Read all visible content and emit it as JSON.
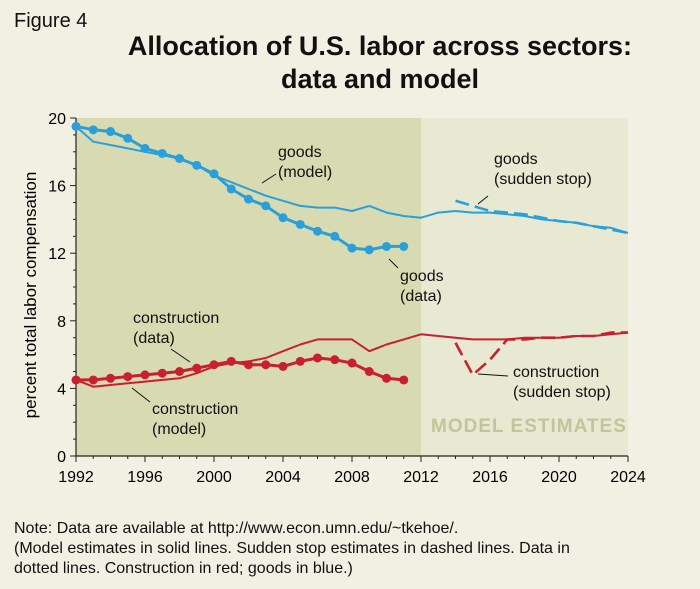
{
  "figure_label": "Figure 4",
  "title_line1": "Allocation of U.S. labor across sectors:",
  "title_line2": "data and model",
  "note": {
    "line1": "Note: Data are available at http://www.econ.umn.edu/~tkehoe/.",
    "line2": "(Model estimates in solid lines. Sudden stop estimates in dashed lines. Data in",
    "line3": "dotted lines. Construction in red; goods in blue.)"
  },
  "colors": {
    "goods": "#2b9fd9",
    "construction": "#c8202f",
    "data_region": "#d8dbb2",
    "estimate_region": "#e8e9d2",
    "estimates_text": "#c1c59a"
  },
  "chart_data": {
    "type": "line",
    "title": "Allocation of U.S. labor across sectors: data and model",
    "xlabel": "",
    "ylabel": "percent total labor compensation",
    "xlim": [
      1992,
      2024
    ],
    "ylim": [
      0,
      20
    ],
    "xticks": [
      1992,
      1996,
      2000,
      2004,
      2008,
      2012,
      2016,
      2020,
      2024
    ],
    "yticks": [
      0,
      4,
      8,
      12,
      16,
      20
    ],
    "regions": [
      {
        "name": "data",
        "from": 1992,
        "to": 2012
      },
      {
        "name": "model_estimates",
        "from": 2012,
        "to": 2024,
        "label": "MODEL ESTIMATES"
      }
    ],
    "series": [
      {
        "name": "goods (model)",
        "sector": "goods",
        "style": "solid",
        "label_lines": [
          "goods",
          "(model)"
        ],
        "x": [
          1992,
          1993,
          1994,
          1995,
          1996,
          1997,
          1998,
          1999,
          2000,
          2001,
          2002,
          2003,
          2004,
          2005,
          2006,
          2007,
          2008,
          2009,
          2010,
          2011,
          2012,
          2013,
          2014,
          2015,
          2016,
          2017,
          2018,
          2019,
          2020,
          2021,
          2022,
          2023,
          2024
        ],
        "y": [
          19.5,
          18.6,
          18.4,
          18.2,
          18.0,
          17.8,
          17.6,
          17.2,
          16.6,
          16.2,
          15.8,
          15.4,
          15.1,
          14.8,
          14.7,
          14.7,
          14.5,
          14.8,
          14.4,
          14.2,
          14.1,
          14.4,
          14.5,
          14.4,
          14.4,
          14.3,
          14.2,
          14.0,
          13.9,
          13.8,
          13.6,
          13.5,
          13.2
        ]
      },
      {
        "name": "goods (data)",
        "sector": "goods",
        "style": "dotted",
        "label_lines": [
          "goods",
          "(data)"
        ],
        "x": [
          1992,
          1993,
          1994,
          1995,
          1996,
          1997,
          1998,
          1999,
          2000,
          2001,
          2002,
          2003,
          2004,
          2005,
          2006,
          2007,
          2008,
          2009,
          2010,
          2011
        ],
        "y": [
          19.5,
          19.3,
          19.2,
          18.8,
          18.2,
          17.9,
          17.6,
          17.2,
          16.7,
          15.8,
          15.2,
          14.8,
          14.1,
          13.7,
          13.3,
          13.0,
          12.3,
          12.2,
          12.4,
          12.4
        ]
      },
      {
        "name": "goods (sudden stop)",
        "sector": "goods",
        "style": "dashed",
        "label_lines": [
          "goods",
          "(sudden stop)"
        ],
        "x": [
          2014,
          2015,
          2016,
          2017,
          2018,
          2019,
          2020,
          2021,
          2022,
          2023,
          2024
        ],
        "y": [
          15.1,
          14.8,
          14.5,
          14.4,
          14.3,
          14.1,
          13.9,
          13.8,
          13.6,
          13.4,
          13.2
        ]
      },
      {
        "name": "construction (model)",
        "sector": "construction",
        "style": "solid",
        "label_lines": [
          "construction",
          "(model)"
        ],
        "x": [
          1992,
          1993,
          1994,
          1995,
          1996,
          1997,
          1998,
          1999,
          2000,
          2001,
          2002,
          2003,
          2004,
          2005,
          2006,
          2007,
          2008,
          2009,
          2010,
          2011,
          2012,
          2013,
          2014,
          2015,
          2016,
          2017,
          2018,
          2019,
          2020,
          2021,
          2022,
          2023,
          2024
        ],
        "y": [
          4.5,
          4.1,
          4.2,
          4.3,
          4.4,
          4.5,
          4.6,
          4.9,
          5.3,
          5.5,
          5.6,
          5.8,
          6.2,
          6.6,
          6.9,
          6.9,
          6.9,
          6.2,
          6.6,
          6.9,
          7.2,
          7.1,
          7.0,
          6.9,
          6.9,
          6.9,
          7.0,
          7.0,
          7.0,
          7.1,
          7.1,
          7.2,
          7.3
        ]
      },
      {
        "name": "construction (data)",
        "sector": "construction",
        "style": "dotted",
        "label_lines": [
          "construction",
          "(data)"
        ],
        "x": [
          1992,
          1993,
          1994,
          1995,
          1996,
          1997,
          1998,
          1999,
          2000,
          2001,
          2002,
          2003,
          2004,
          2005,
          2006,
          2007,
          2008,
          2009,
          2010,
          2011
        ],
        "y": [
          4.5,
          4.5,
          4.6,
          4.7,
          4.8,
          4.9,
          5.0,
          5.2,
          5.4,
          5.6,
          5.4,
          5.4,
          5.3,
          5.6,
          5.8,
          5.7,
          5.5,
          5.0,
          4.6,
          4.5
        ]
      },
      {
        "name": "construction (sudden stop)",
        "sector": "construction",
        "style": "dashed",
        "label_lines": [
          "construction",
          "(sudden stop)"
        ],
        "x": [
          2014,
          2015,
          2016,
          2017,
          2018,
          2019,
          2020,
          2021,
          2022,
          2023,
          2024
        ],
        "y": [
          6.7,
          4.8,
          5.7,
          6.9,
          6.9,
          7.0,
          7.0,
          7.1,
          7.1,
          7.3,
          7.3
        ]
      }
    ]
  }
}
